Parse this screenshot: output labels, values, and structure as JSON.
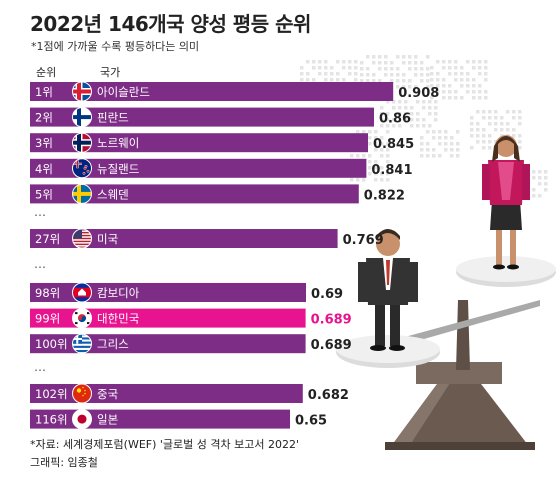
{
  "title": "2022년 146개국 양성 평등 순위",
  "subtitle": "*1점에 가까울 수록 평등하다는 의미",
  "header": {
    "rank": "순위",
    "country": "국가"
  },
  "ellipsis": "…",
  "source": "*자료: 세계경제포럼(WEF) '글로벌 성 격차 보고서 2022'",
  "graphic_credit": "그래픽: 임종철",
  "colors": {
    "bar": "#7e2d86",
    "highlight": "#e8138f",
    "text": "#222222"
  },
  "chart_data": {
    "type": "bar",
    "orientation": "horizontal",
    "xlim": [
      0,
      1
    ],
    "grid": false,
    "highlight": "대한민국",
    "rows": [
      {
        "rank": "1위",
        "country": "아이슬란드",
        "value": 0.908,
        "value_label": "0.908",
        "flag": "iceland-flag",
        "group": 0
      },
      {
        "rank": "2위",
        "country": "핀란드",
        "value": 0.86,
        "value_label": "0.86",
        "flag": "finland-flag",
        "group": 0
      },
      {
        "rank": "3위",
        "country": "노르웨이",
        "value": 0.845,
        "value_label": "0.845",
        "flag": "norway-flag",
        "group": 0
      },
      {
        "rank": "4위",
        "country": "뉴질랜드",
        "value": 0.841,
        "value_label": "0.841",
        "flag": "new-zealand-flag",
        "group": 0
      },
      {
        "rank": "5위",
        "country": "스웨덴",
        "value": 0.822,
        "value_label": "0.822",
        "flag": "sweden-flag",
        "group": 0
      },
      {
        "rank": "27위",
        "country": "미국",
        "value": 0.769,
        "value_label": "0.769",
        "flag": "usa-flag",
        "group": 1
      },
      {
        "rank": "98위",
        "country": "캄보디아",
        "value": 0.69,
        "value_label": "0.69",
        "flag": "cambodia-flag",
        "group": 2
      },
      {
        "rank": "99위",
        "country": "대한민국",
        "value": 0.689,
        "value_label": "0.689",
        "flag": "korea-flag",
        "group": 2
      },
      {
        "rank": "100위",
        "country": "그리스",
        "value": 0.689,
        "value_label": "0.689",
        "flag": "greece-flag",
        "group": 2
      },
      {
        "rank": "102위",
        "country": "중국",
        "value": 0.682,
        "value_label": "0.682",
        "flag": "china-flag",
        "group": 3
      },
      {
        "rank": "116위",
        "country": "일본",
        "value": 0.65,
        "value_label": "0.65",
        "flag": "japan-flag",
        "group": 3
      }
    ]
  }
}
